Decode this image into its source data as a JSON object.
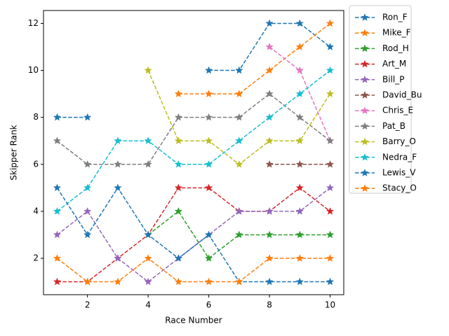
{
  "chart_data": {
    "type": "line",
    "xlabel": "Race Number",
    "ylabel": "Skipper Rank",
    "x": [
      1,
      2,
      3,
      4,
      5,
      6,
      7,
      8,
      9,
      10
    ],
    "xlim": [
      0.55,
      10.45
    ],
    "xticks": [
      2,
      4,
      6,
      8,
      10
    ],
    "ylim": [
      0.45,
      12.55
    ],
    "yticks": [
      2,
      4,
      6,
      8,
      10,
      12
    ],
    "grid": false,
    "legend": "outside right",
    "linestyle": "dashed",
    "marker": "star",
    "series": [
      {
        "name": "Ron_F",
        "color": "#1f77b4",
        "values": [
          8,
          8,
          null,
          null,
          null,
          10,
          10,
          12,
          12,
          11
        ]
      },
      {
        "name": "Mike_F",
        "color": "#ff7f0e",
        "values": [
          null,
          null,
          null,
          null,
          9,
          9,
          9,
          10,
          11,
          12
        ]
      },
      {
        "name": "Rod_H",
        "color": "#2ca02c",
        "values": [
          null,
          null,
          null,
          3,
          4,
          2,
          3,
          3,
          3,
          3
        ]
      },
      {
        "name": "Art_M",
        "color": "#d62728",
        "values": [
          1,
          1,
          2,
          3,
          5,
          5,
          4,
          4,
          5,
          4
        ]
      },
      {
        "name": "Bill_P",
        "color": "#9467bd",
        "values": [
          3,
          4,
          2,
          1,
          2,
          3,
          4,
          4,
          4,
          5
        ]
      },
      {
        "name": "David_Bu",
        "color": "#8c564b",
        "values": [
          null,
          null,
          null,
          null,
          null,
          null,
          null,
          6,
          6,
          6
        ]
      },
      {
        "name": "Chris_E",
        "color": "#e377c2",
        "values": [
          null,
          null,
          null,
          null,
          null,
          null,
          null,
          11,
          10,
          7
        ]
      },
      {
        "name": "Pat_B",
        "color": "#7f7f7f",
        "values": [
          7,
          6,
          6,
          6,
          8,
          8,
          8,
          9,
          8,
          7
        ]
      },
      {
        "name": "Barry_O",
        "color": "#bcbd22",
        "values": [
          null,
          null,
          null,
          10,
          7,
          7,
          6,
          7,
          7,
          9
        ]
      },
      {
        "name": "Nedra_F",
        "color": "#17becf",
        "values": [
          4,
          5,
          7,
          7,
          6,
          6,
          7,
          8,
          9,
          10
        ]
      },
      {
        "name": "Lewis_V",
        "color": "#1f77b4",
        "values": [
          5,
          3,
          5,
          3,
          2,
          3,
          1,
          1,
          1,
          1
        ]
      },
      {
        "name": "Stacy_O",
        "color": "#ff7f0e",
        "values": [
          2,
          1,
          1,
          2,
          1,
          1,
          1,
          2,
          2,
          2
        ]
      }
    ]
  }
}
